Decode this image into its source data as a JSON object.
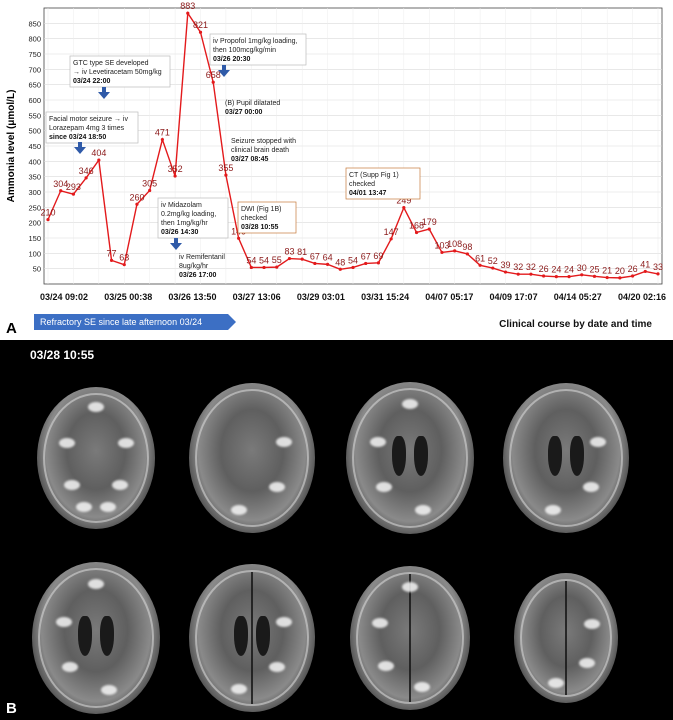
{
  "panel_a_letter": "A",
  "panel_b_letter": "B",
  "chart_data": {
    "type": "line",
    "ylabel": "Ammonia level (μmol/L)",
    "xlabel": "Clinical course by date and time",
    "ylim": [
      0,
      900
    ],
    "y_ticks": [
      50,
      100,
      150,
      200,
      250,
      300,
      350,
      400,
      450,
      500,
      550,
      600,
      650,
      700,
      750,
      800,
      850
    ],
    "x_tick_labels": [
      "03/24 09:02",
      "03/25 00:38",
      "03/26 13:50",
      "03/27 13:06",
      "03/29 03:01",
      "03/31 15:24",
      "04/07 05:17",
      "04/09 17:07",
      "04/14 05:27",
      "04/20 02:16"
    ],
    "grid": true,
    "series_color": "#e31a1c",
    "label_color": "#8b1a1a",
    "values": [
      210,
      304,
      293,
      346,
      404,
      77,
      63,
      260,
      305,
      471,
      352,
      883,
      821,
      658,
      355,
      149,
      54,
      54,
      55,
      83,
      81,
      67,
      64,
      48,
      54,
      67,
      69,
      147,
      249,
      168,
      179,
      103,
      108,
      98,
      61,
      52,
      39,
      32,
      32,
      26,
      24,
      24,
      30,
      25,
      21,
      20,
      26,
      41,
      33
    ],
    "annotations": [
      {
        "id": "ann-facial",
        "lines": [
          "Facial motor seizure → iv",
          "Lorazepam 4mg 3 times"
        ],
        "bold": "since 03/24 18:50",
        "arrow": true
      },
      {
        "id": "ann-gtc",
        "lines": [
          "GTC type SE developed",
          "→ iv Levetiracetam 50mg/kg"
        ],
        "bold": "03/24 22:00",
        "arrow": true
      },
      {
        "id": "ann-midazolam",
        "lines": [
          "iv Midazolam",
          "0.2mg/kg loading,",
          "then 1mg/kg/hr"
        ],
        "bold": "03/26 14:30",
        "arrow": true
      },
      {
        "id": "ann-remifentanil",
        "lines": [
          "iv Remifentanil",
          "8ug/kg/hr"
        ],
        "bold": "03/26 17:00",
        "arrow": false
      },
      {
        "id": "ann-propofol",
        "lines": [
          "iv Propofol 1mg/kg loading,",
          "then 100mcg/kg/min"
        ],
        "bold": "03/26 20:30",
        "arrow": true
      },
      {
        "id": "ann-pupil",
        "lines": [
          "(B) Pupil dilatated"
        ],
        "bold": "03/27 00:00",
        "arrow": false
      },
      {
        "id": "ann-seizure-stop",
        "lines": [
          "Seizure stopped with",
          "clinical brain death"
        ],
        "bold": "03/27 08:45",
        "arrow": false
      },
      {
        "id": "ann-dwi",
        "lines": [
          "DWI (Fig 1B)",
          "checked"
        ],
        "bold": "03/28 10:55",
        "arrow": false
      },
      {
        "id": "ann-ct",
        "lines": [
          "CT (Supp Fig 1)",
          "checked"
        ],
        "bold": "04/01 13:47",
        "arrow": false
      }
    ],
    "banner": "Refractory SE since late afternoon 03/24"
  },
  "mri": {
    "timestamp": "03/28 10:55"
  }
}
